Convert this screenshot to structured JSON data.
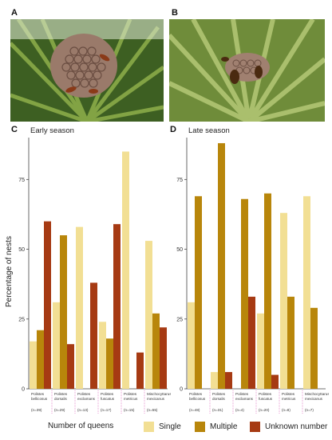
{
  "panels": {
    "a": "A",
    "b": "B",
    "c": "C",
    "d": "D"
  },
  "y_axis_label": "Percentage of nests",
  "legend": {
    "title": "Number of queens",
    "items": [
      {
        "label": "Single",
        "color": "#f2df94"
      },
      {
        "label": "Multiple",
        "color": "#b8860b"
      },
      {
        "label": "Unknown number",
        "color": "#a63a13"
      }
    ]
  },
  "chart_data": [
    {
      "type": "bar",
      "title": "Early season",
      "ylabel": "Percentage of nests",
      "ylim": [
        0,
        90
      ],
      "yticks": [
        0,
        25,
        50,
        75
      ],
      "categories": [
        [
          "Polistes",
          "bellicosus"
        ],
        [
          "Polistes",
          "dorsalis"
        ],
        [
          "Polistes",
          "exclamans"
        ],
        [
          "Polistes",
          "fuscatus"
        ],
        [
          "Polistes",
          "metricus"
        ],
        [
          "Mischocyttarus",
          "mexicanus"
        ]
      ],
      "sample_sizes": [
        "(n=39)",
        "(n=29)",
        "(n=13)",
        "(n=17)",
        "(n=15)",
        "(n=55)"
      ],
      "series": [
        {
          "name": "Single",
          "values": [
            17,
            31,
            58,
            24,
            85,
            53
          ]
        },
        {
          "name": "Multiple",
          "values": [
            21,
            55,
            0,
            18,
            0,
            27
          ]
        },
        {
          "name": "Unknown number",
          "values": [
            60,
            16,
            38,
            59,
            13,
            22
          ]
        }
      ]
    },
    {
      "type": "bar",
      "title": "Late season",
      "ylabel": "",
      "ylim": [
        0,
        90
      ],
      "yticks": [
        0,
        25,
        50,
        75
      ],
      "categories": [
        [
          "Polistes",
          "bellicosus"
        ],
        [
          "Polistes",
          "dorsalis"
        ],
        [
          "Polistes",
          "exclamans"
        ],
        [
          "Polistes",
          "fuscatus"
        ],
        [
          "Polistes",
          "metricus"
        ],
        [
          "Mischocyttarus",
          "mexicanus"
        ]
      ],
      "sample_sizes": [
        "(n=48)",
        "(n=31)",
        "(n=4)",
        "(n=20)",
        "(n=8)",
        "(n=7)"
      ],
      "series": [
        {
          "name": "Single",
          "values": [
            31,
            6,
            0,
            27,
            63,
            69
          ]
        },
        {
          "name": "Multiple",
          "values": [
            69,
            88,
            68,
            70,
            33,
            29
          ]
        },
        {
          "name": "Unknown number",
          "values": [
            0,
            6,
            33,
            5,
            0,
            0
          ]
        }
      ]
    }
  ]
}
